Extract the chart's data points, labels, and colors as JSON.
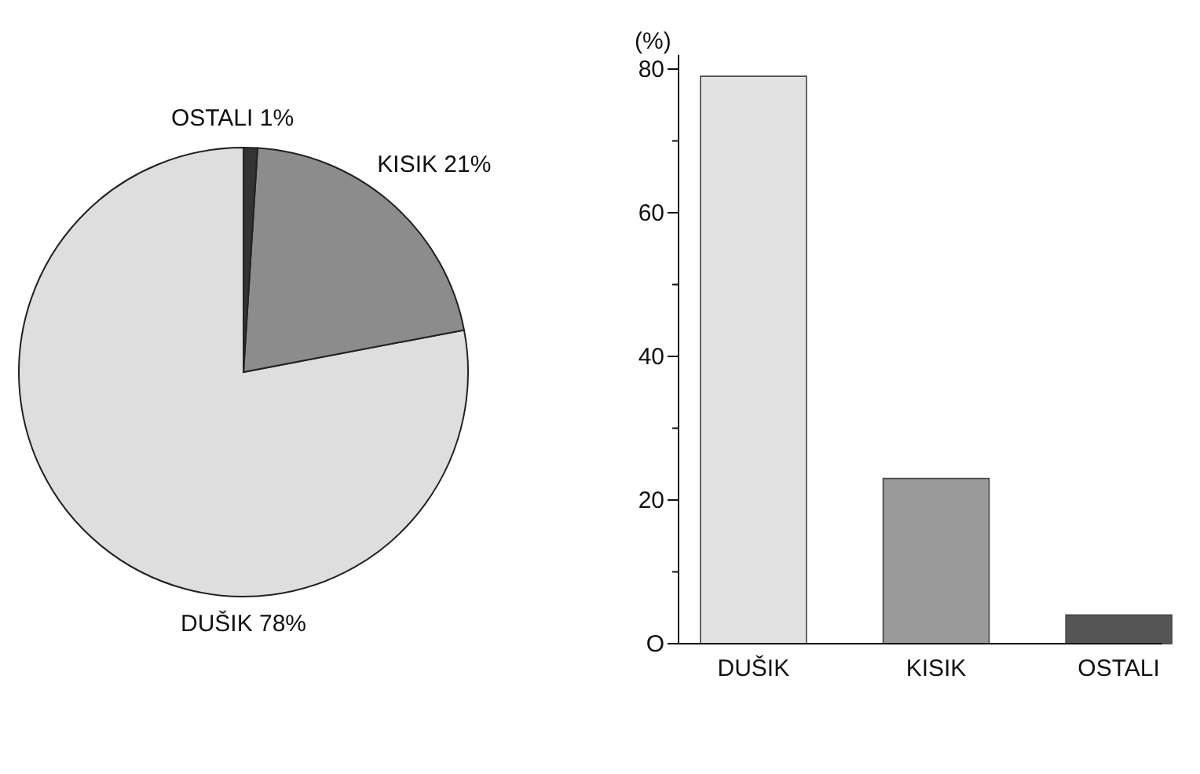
{
  "chart_data": [
    {
      "type": "pie",
      "categories": [
        "DUŠIK",
        "KISIK",
        "OSTALI"
      ],
      "values": [
        78,
        21,
        1
      ],
      "colors": [
        "#dedede",
        "#8c8c8c",
        "#333333"
      ],
      "value_labels": [
        "78%",
        "21%",
        "1%"
      ]
    },
    {
      "type": "bar",
      "categories": [
        "DUŠIK",
        "KISIK",
        "OSTALI"
      ],
      "values": [
        79,
        23,
        4
      ],
      "colors": [
        "#e2e2e2",
        "#9a9a9a",
        "#555555"
      ],
      "ylabel": "(%)",
      "ylim": [
        0,
        82
      ],
      "yticks": [
        {
          "value": 0,
          "label": "O"
        },
        {
          "value": 10,
          "label": null
        },
        20,
        {
          "value": 30,
          "label": null
        },
        40,
        {
          "value": 50,
          "label": null
        },
        60,
        {
          "value": 70,
          "label": null
        },
        80
      ]
    }
  ]
}
